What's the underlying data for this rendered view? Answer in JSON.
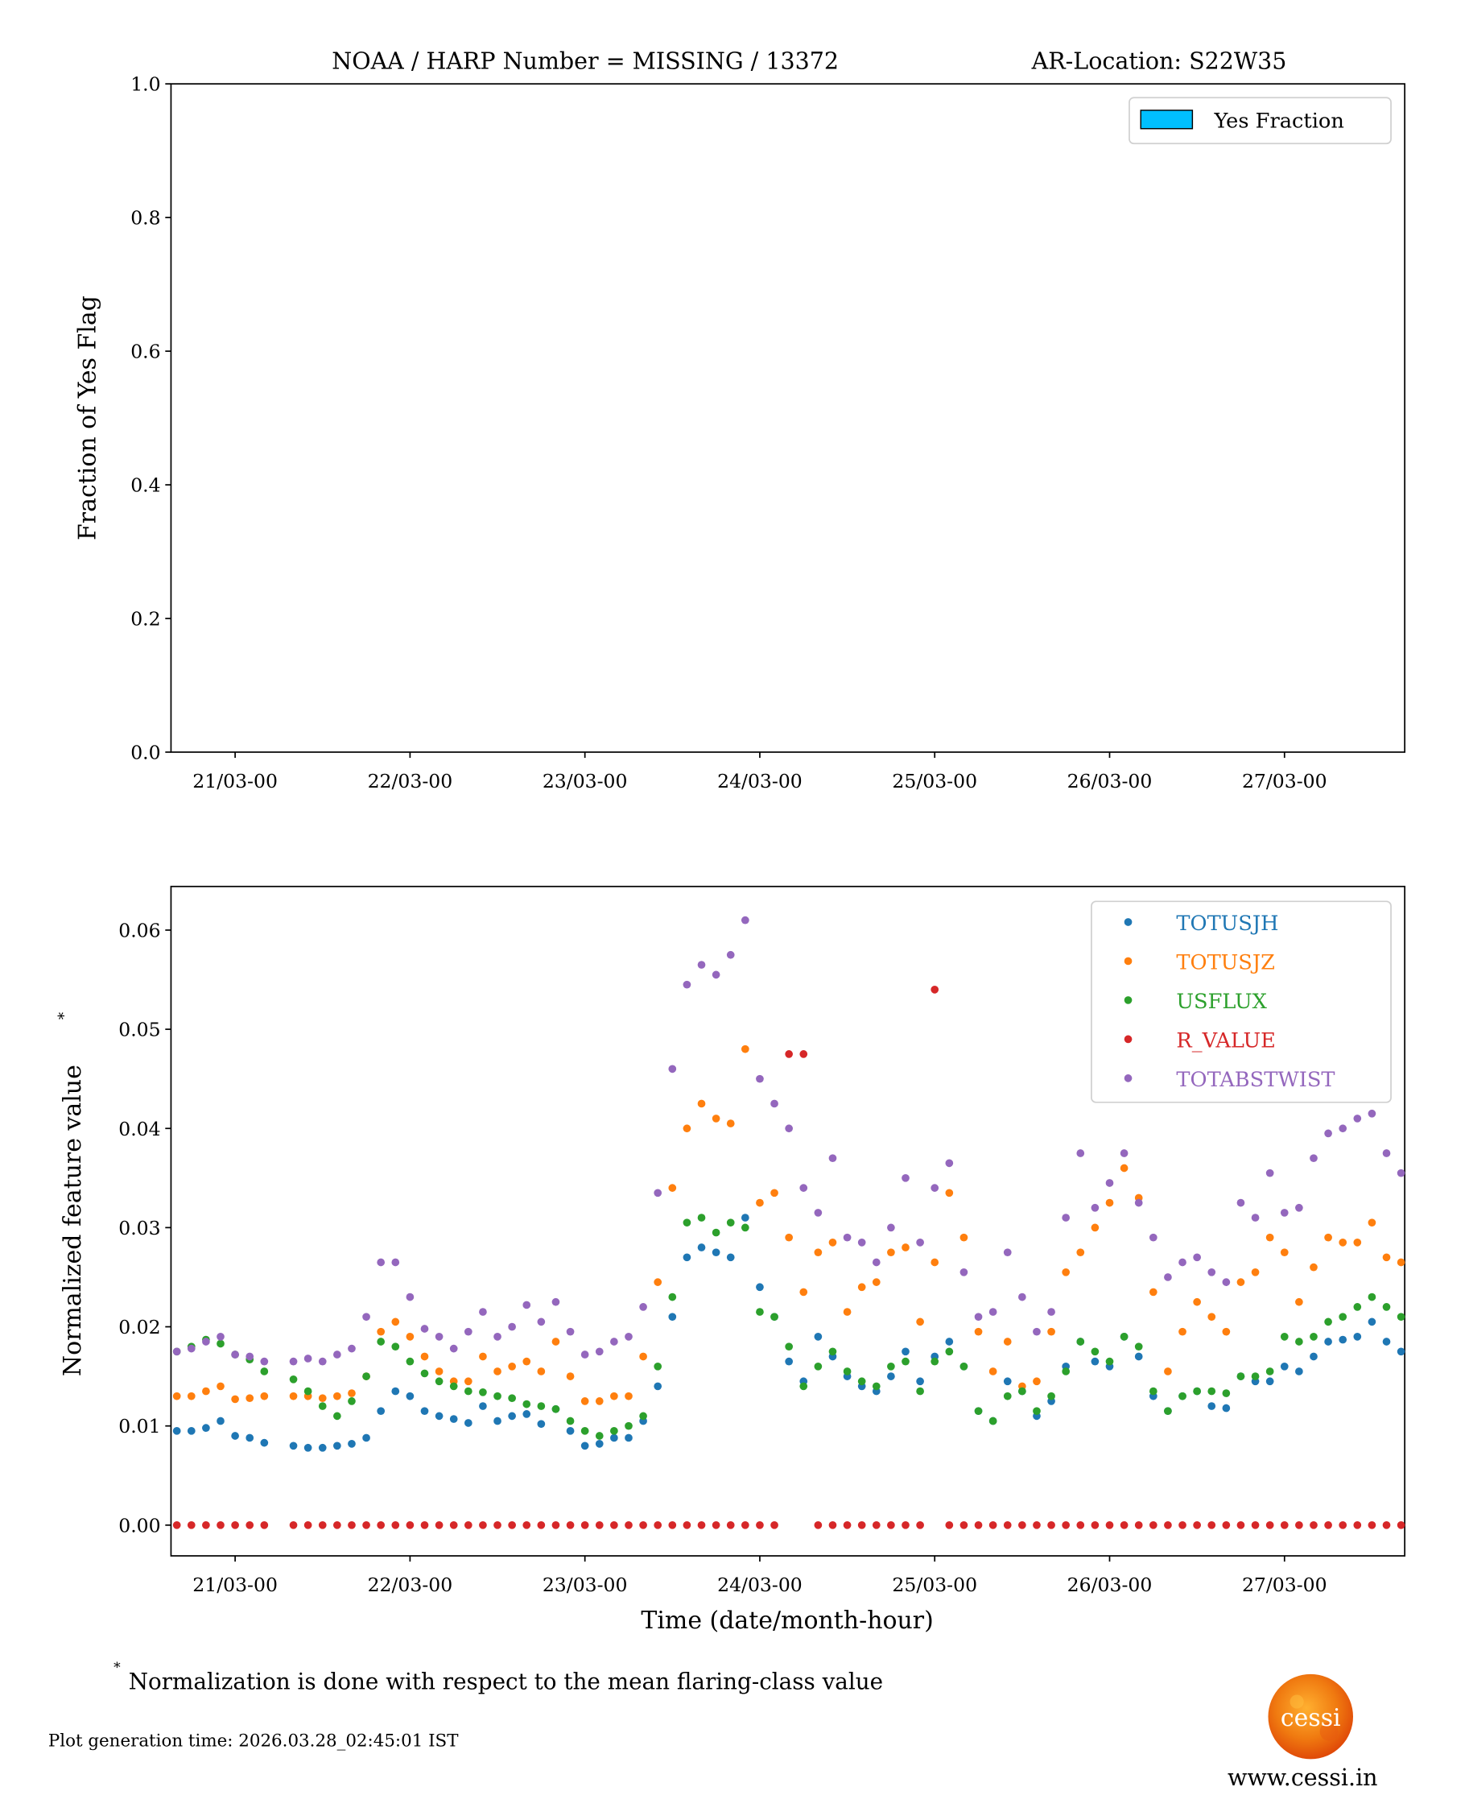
{
  "title": {
    "left": "NOAA / HARP Number = MISSING / 13372",
    "right": "AR-Location: S22W35"
  },
  "chart_data": [
    {
      "type": "bar",
      "ylabel": "Fraction of Yes Flag",
      "xlabel": "",
      "ylim": [
        0,
        1.0
      ],
      "yticks": [
        "0.0",
        "0.2",
        "0.4",
        "0.6",
        "0.8",
        "1.0"
      ],
      "ytick_values": [
        0,
        0.2,
        0.4,
        0.6,
        0.8,
        1.0
      ],
      "xticks": [
        "21/03-00",
        "22/03-00",
        "23/03-00",
        "24/03-00",
        "25/03-00",
        "26/03-00",
        "27/03-00"
      ],
      "xtick_hours": [
        0,
        24,
        48,
        72,
        96,
        120,
        144
      ],
      "xlim_hours": [
        -8.8,
        160.5
      ],
      "legend": [
        {
          "label": "Yes Fraction",
          "color": "#00bfff"
        }
      ],
      "legend_position": "top-right",
      "values": []
    },
    {
      "type": "scatter",
      "xlabel": "Time (date/month-hour)",
      "ylabel": "Normalized feature value",
      "ylabel_sup": "*",
      "ylim": [
        -0.0031,
        0.0644
      ],
      "yticks": [
        "0.00",
        "0.01",
        "0.02",
        "0.03",
        "0.04",
        "0.05",
        "0.06"
      ],
      "ytick_values": [
        0,
        0.01,
        0.02,
        0.03,
        0.04,
        0.05,
        0.06
      ],
      "xticks": [
        "21/03-00",
        "22/03-00",
        "23/03-00",
        "24/03-00",
        "25/03-00",
        "26/03-00",
        "27/03-00"
      ],
      "xtick_hours": [
        0,
        24,
        48,
        72,
        96,
        120,
        144
      ],
      "xlim_hours": [
        -8.8,
        160.5
      ],
      "legend_position": "top-right",
      "x_hours": [
        -8,
        -6,
        -4,
        -2,
        0,
        2,
        4,
        6,
        8,
        10,
        12,
        14,
        16,
        18,
        20,
        22,
        24,
        26,
        28,
        30,
        32,
        34,
        36,
        38,
        40,
        42,
        44,
        46,
        48,
        50,
        52,
        54,
        56,
        58,
        60,
        62,
        64,
        66,
        68,
        70,
        72,
        74,
        76,
        78,
        80,
        82,
        84,
        86,
        88,
        90,
        92,
        94,
        96,
        98,
        100,
        102,
        104,
        106,
        108,
        110,
        112,
        114,
        116,
        118,
        120,
        122,
        124,
        126,
        128,
        130,
        132,
        134,
        136,
        138,
        140,
        142,
        144,
        146,
        148,
        150,
        152,
        154,
        156,
        158,
        160
      ],
      "series": [
        {
          "name": "TOTUSJH",
          "color": "#1f77b4",
          "values": [
            0.0095,
            0.0095,
            0.0098,
            0.0105,
            0.009,
            0.0088,
            0.0083,
            null,
            0.008,
            0.0078,
            0.0078,
            0.008,
            0.0082,
            0.0088,
            0.0115,
            0.0135,
            0.013,
            0.0115,
            0.011,
            0.0107,
            0.0103,
            0.012,
            0.0105,
            0.011,
            0.0112,
            0.0102,
            0.0117,
            0.0095,
            0.008,
            0.0082,
            0.0088,
            0.0088,
            0.0105,
            0.014,
            0.021,
            0.027,
            0.028,
            0.0275,
            0.027,
            0.031,
            0.024,
            0.021,
            0.0165,
            0.0145,
            0.019,
            0.017,
            0.015,
            0.014,
            0.0135,
            0.015,
            0.0175,
            0.0145,
            0.017,
            0.0185,
            0.016,
            0.0115,
            0.0105,
            0.0145,
            0.0135,
            0.011,
            0.0125,
            0.016,
            0.0185,
            0.0165,
            0.016,
            0.019,
            0.017,
            0.013,
            0.0115,
            0.013,
            0.0135,
            0.012,
            0.0118,
            0.015,
            0.0145,
            0.0145,
            0.016,
            0.0155,
            0.017,
            0.0185,
            0.0187,
            0.019,
            0.0205,
            0.0185,
            0.0175
          ]
        },
        {
          "name": "TOTUSJZ",
          "color": "#ff7f0e",
          "values": [
            0.013,
            0.013,
            0.0135,
            0.014,
            0.0127,
            0.0128,
            0.013,
            null,
            0.013,
            0.013,
            0.0128,
            0.013,
            0.0133,
            0.015,
            0.0195,
            0.0205,
            0.019,
            0.017,
            0.0155,
            0.0145,
            0.0145,
            0.017,
            0.0155,
            0.016,
            0.0165,
            0.0155,
            0.0185,
            0.015,
            0.0125,
            0.0125,
            0.013,
            0.013,
            0.017,
            0.0245,
            0.034,
            0.04,
            0.0425,
            0.041,
            0.0405,
            0.048,
            0.0325,
            0.0335,
            0.029,
            0.0235,
            0.0275,
            0.0285,
            0.0215,
            0.024,
            0.0245,
            0.0275,
            0.028,
            0.0205,
            0.0265,
            0.0335,
            0.029,
            0.0195,
            0.0155,
            0.0185,
            0.014,
            0.0145,
            0.0195,
            0.0255,
            0.0275,
            0.03,
            0.0325,
            0.036,
            0.033,
            0.0235,
            0.0155,
            0.0195,
            0.0225,
            0.021,
            0.0195,
            0.0245,
            0.0255,
            0.029,
            0.0275,
            0.0225,
            0.026,
            0.029,
            0.0285,
            0.0285,
            0.0305,
            0.027,
            0.0265
          ]
        },
        {
          "name": "USFLUX",
          "color": "#2ca02c",
          "values": [
            0.0175,
            0.018,
            0.0187,
            0.0183,
            0.0172,
            0.0167,
            0.0155,
            null,
            0.0147,
            0.0135,
            0.012,
            0.011,
            0.0125,
            0.015,
            0.0185,
            0.018,
            0.0165,
            0.0153,
            0.0145,
            0.014,
            0.0135,
            0.0134,
            0.013,
            0.0128,
            0.0122,
            0.012,
            0.0117,
            0.0105,
            0.0095,
            0.009,
            0.0095,
            0.01,
            0.011,
            0.016,
            0.023,
            0.0305,
            0.031,
            0.0295,
            0.0305,
            0.03,
            0.0215,
            0.021,
            0.018,
            0.014,
            0.016,
            0.0175,
            0.0155,
            0.0145,
            0.014,
            0.016,
            0.0165,
            0.0135,
            0.0165,
            0.0175,
            0.016,
            0.0115,
            0.0105,
            0.013,
            0.0135,
            0.0115,
            0.013,
            0.0155,
            0.0185,
            0.0175,
            0.0165,
            0.019,
            0.018,
            0.0135,
            0.0115,
            0.013,
            0.0135,
            0.0135,
            0.0133,
            0.015,
            0.015,
            0.0155,
            0.019,
            0.0185,
            0.019,
            0.0205,
            0.021,
            0.022,
            0.023,
            0.022,
            0.021
          ]
        },
        {
          "name": "R_VALUE",
          "color": "#d62728",
          "values": [
            0,
            0,
            0,
            0,
            0,
            0,
            0,
            null,
            0,
            0,
            0,
            0,
            0,
            0,
            0,
            0,
            0,
            0,
            0,
            0,
            0,
            0,
            0,
            0,
            0,
            0,
            0,
            0,
            0,
            0,
            0,
            0,
            0,
            0,
            0,
            0,
            0,
            0,
            0,
            0,
            0,
            0,
            0.0475,
            0.0475,
            0,
            0,
            0,
            0,
            0,
            0,
            0,
            0,
            0.054,
            0,
            0,
            0,
            0,
            0,
            0,
            0,
            0,
            0,
            0,
            0,
            0,
            0,
            0,
            0,
            0,
            0,
            0,
            0,
            0,
            0,
            0,
            0,
            0,
            0,
            0,
            0,
            0,
            0,
            0,
            0,
            0
          ]
        },
        {
          "name": "TOTABSTWIST",
          "color": "#9467bd",
          "values": [
            0.0175,
            0.0178,
            0.0185,
            0.019,
            0.0172,
            0.017,
            0.0165,
            null,
            0.0165,
            0.0168,
            0.0165,
            0.0172,
            0.0178,
            0.021,
            0.0265,
            0.0265,
            0.023,
            0.0198,
            0.019,
            0.0178,
            0.0195,
            0.0215,
            0.019,
            0.02,
            0.0222,
            0.0205,
            0.0225,
            0.0195,
            0.0172,
            0.0175,
            0.0185,
            0.019,
            0.022,
            0.0335,
            0.046,
            0.0545,
            0.0565,
            0.0555,
            0.0575,
            0.061,
            0.045,
            0.0425,
            0.04,
            0.034,
            0.0315,
            0.037,
            0.029,
            0.0285,
            0.0265,
            0.03,
            0.035,
            0.0285,
            0.034,
            0.0365,
            0.0255,
            0.021,
            0.0215,
            0.0275,
            0.023,
            0.0195,
            0.0215,
            0.031,
            0.0375,
            0.032,
            0.0345,
            0.0375,
            0.0325,
            0.029,
            0.025,
            0.0265,
            0.027,
            0.0255,
            0.0245,
            0.0325,
            0.031,
            0.0355,
            0.0315,
            0.032,
            0.037,
            0.0395,
            0.04,
            0.041,
            0.0415,
            0.0375,
            0.0355
          ]
        }
      ]
    }
  ],
  "footnote": {
    "star": "*",
    "text": "Normalization is done with respect to the mean flaring-class value"
  },
  "generation_time": "Plot generation time: 2026.03.28_02:45:01 IST",
  "logo": {
    "text": "cessi",
    "url_text": "www.cessi.in"
  }
}
